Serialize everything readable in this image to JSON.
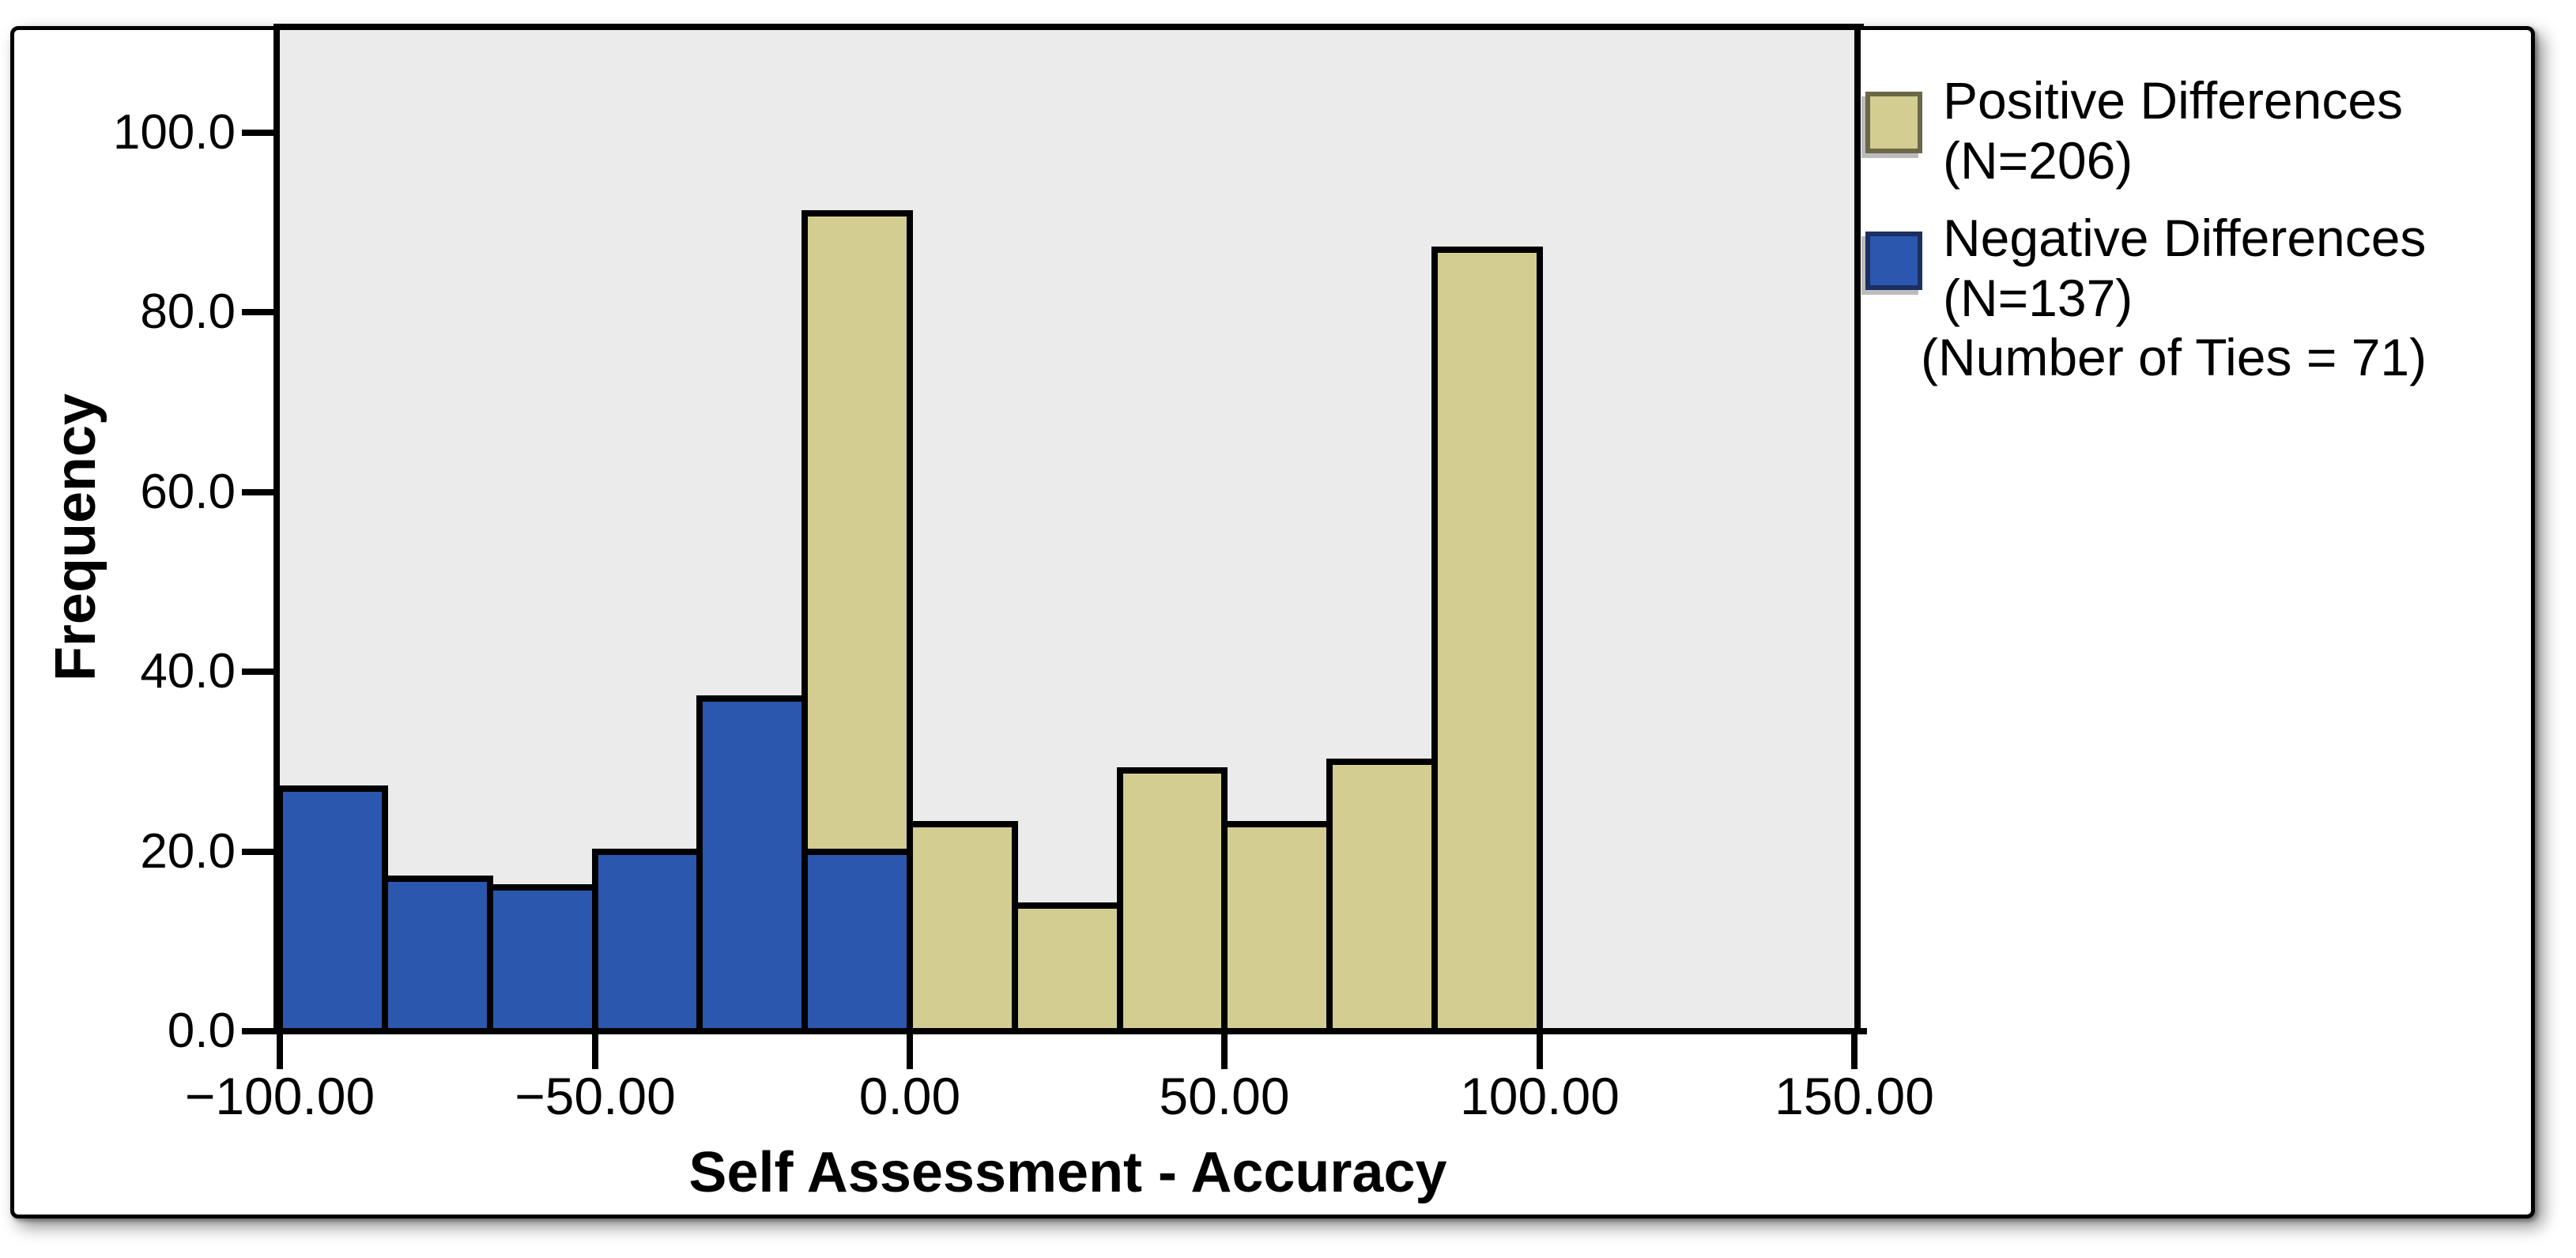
{
  "figure": {
    "background": "#ffffff",
    "card_border_color": "#000000",
    "shadow_color": "#9a9a9a"
  },
  "chart_data": {
    "type": "bar",
    "subtype": "overlaid-histogram-of-paired-differences",
    "title": "",
    "xlabel": "Self Assessment - Accuracy",
    "ylabel": "Frequency",
    "xlim": [
      -100,
      150
    ],
    "ylim": [
      0,
      111
    ],
    "grid": "off",
    "plot_background": "#ebebeb",
    "bar_outline_color": "#000000",
    "bin_width": 16.67,
    "x_axis": {
      "title": "Self Assessment - Accuracy",
      "ticks": [
        {
          "value": -100,
          "label": "−100.00"
        },
        {
          "value": -50,
          "label": "−50.00"
        },
        {
          "value": 0,
          "label": "0.00"
        },
        {
          "value": 50,
          "label": "50.00"
        },
        {
          "value": 100,
          "label": "100.00"
        },
        {
          "value": 150,
          "label": "150.00"
        }
      ]
    },
    "y_axis": {
      "title": "Frequency",
      "ticks": [
        {
          "value": 100,
          "label": "100.0"
        },
        {
          "value": 80,
          "label": "80.0"
        },
        {
          "value": 60,
          "label": "60.0"
        },
        {
          "value": 40,
          "label": "40.0"
        },
        {
          "value": 20,
          "label": "20.0"
        },
        {
          "value": 0,
          "label": "0.0"
        }
      ]
    },
    "series": [
      {
        "name": "Positive Differences",
        "n": 206,
        "color": "#d3cd92",
        "values_by_bin": [
          23,
          14,
          29,
          23,
          30,
          87
        ],
        "bins_range": "0 to 100"
      },
      {
        "name": "Negative Differences",
        "n": 137,
        "color": "#2b57ae",
        "values_by_bin": [
          27,
          17,
          16,
          20,
          37,
          20
        ],
        "bins_range": "-100 to 0"
      },
      {
        "name": "Ties",
        "n": 71,
        "color": "#d3cd92",
        "note": "drawn stacked above the negative bar in the bin just below zero; column top = 91"
      }
    ],
    "bins": [
      {
        "from": -100.0,
        "to": -83.33,
        "series": "negative",
        "value": 27
      },
      {
        "from": -83.33,
        "to": -66.67,
        "series": "negative",
        "value": 17
      },
      {
        "from": -66.67,
        "to": -50.0,
        "series": "negative",
        "value": 16
      },
      {
        "from": -50.0,
        "to": -33.33,
        "series": "negative",
        "value": 20
      },
      {
        "from": -33.33,
        "to": -16.67,
        "series": "negative",
        "value": 37
      },
      {
        "from": -16.67,
        "to": 0.0,
        "series": "negative",
        "value": 20,
        "ties_stacked_above": 71,
        "column_top": 91
      },
      {
        "from": 0.0,
        "to": 16.67,
        "series": "positive",
        "value": 23
      },
      {
        "from": 16.67,
        "to": 33.33,
        "series": "positive",
        "value": 14
      },
      {
        "from": 33.33,
        "to": 50.0,
        "series": "positive",
        "value": 29
      },
      {
        "from": 50.0,
        "to": 66.67,
        "series": "positive",
        "value": 23
      },
      {
        "from": 66.67,
        "to": 83.33,
        "series": "positive",
        "value": 30
      },
      {
        "from": 83.33,
        "to": 100.0,
        "series": "positive",
        "value": 87
      }
    ],
    "colors": {
      "positive": "#d3cd92",
      "negative": "#2b57ae",
      "positive_swatch_border": "#6b6847",
      "negative_swatch_border": "#1b2f60"
    }
  },
  "legend": {
    "items": [
      {
        "series": "positive",
        "color": "#d3cd92",
        "border": "#6b6847",
        "lines": [
          "Positive Differences",
          "(N=206)"
        ]
      },
      {
        "series": "negative",
        "color": "#2b57ae",
        "border": "#1b2f60",
        "lines": [
          "Negative Differences",
          "(N=137)"
        ]
      }
    ],
    "note": "(Number of Ties = 71)"
  }
}
